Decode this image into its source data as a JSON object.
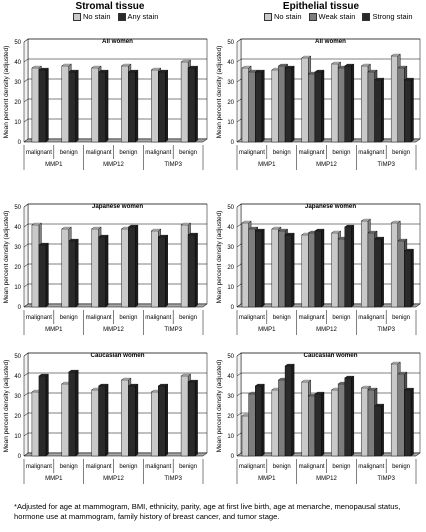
{
  "titles": {
    "left": "Stromal tissue",
    "right": "Epithelial tissue"
  },
  "legends": {
    "left": [
      {
        "label": "No stain",
        "color": "#c9c9c9"
      },
      {
        "label": "Any stain",
        "color": "#2a2a2a"
      }
    ],
    "right": [
      {
        "label": "No stain",
        "color": "#c9c9c9"
      },
      {
        "label": "Weak stain",
        "color": "#7d7d7d"
      },
      {
        "label": "Strong stain",
        "color": "#2a2a2a"
      }
    ]
  },
  "footnote": "*Adjusted for age at mammogram, BMI, ethnicity, parity, age at first live birth, age at menarche, menopausal status, hormone use at mammogram, family history of breast cancer, and tumor stage.",
  "chart_data": [
    {
      "type": "bar",
      "title": "All women",
      "ylabel": "Mean percent density (adjusted)",
      "ylim": [
        0,
        50
      ],
      "categories": [
        "malignant",
        "benign",
        "malignant",
        "benign",
        "malignant",
        "benign"
      ],
      "groups": [
        "MMP1",
        "MMP12",
        "TIMP3"
      ],
      "series": [
        {
          "name": "No stain",
          "values": [
            37,
            38,
            37,
            38,
            36,
            40
          ]
        },
        {
          "name": "Any stain",
          "values": [
            36,
            35,
            35,
            35,
            35,
            37
          ]
        }
      ]
    },
    {
      "type": "bar",
      "title": "All women",
      "ylabel": "Mean percent density (adjusted)",
      "ylim": [
        0,
        50
      ],
      "categories": [
        "malignant",
        "benign",
        "malignant",
        "benign",
        "malignant",
        "benign"
      ],
      "groups": [
        "MMP1",
        "MMP12",
        "TIMP3"
      ],
      "series": [
        {
          "name": "No stain",
          "values": [
            37,
            36,
            42,
            39,
            38,
            43
          ]
        },
        {
          "name": "Weak stain",
          "values": [
            35,
            38,
            34,
            37,
            35,
            37
          ]
        },
        {
          "name": "Strong stain",
          "values": [
            35,
            37,
            35,
            38,
            31,
            31
          ]
        }
      ]
    },
    {
      "type": "bar",
      "title": "Japanese women",
      "ylabel": "Mean percent density (adjusted)",
      "ylim": [
        0,
        50
      ],
      "categories": [
        "malignant",
        "benign",
        "malignant",
        "benign",
        "malignant",
        "benign"
      ],
      "groups": [
        "MMP1",
        "MMP12",
        "TIMP3"
      ],
      "series": [
        {
          "name": "No stain",
          "values": [
            41,
            39,
            39,
            39,
            38,
            41
          ]
        },
        {
          "name": "Any stain",
          "values": [
            31,
            33,
            35,
            40,
            35,
            36
          ]
        }
      ]
    },
    {
      "type": "bar",
      "title": "Japanese women",
      "ylabel": "Mean percent density (adjusted)",
      "ylim": [
        0,
        50
      ],
      "categories": [
        "malignant",
        "benign",
        "malignant",
        "benign",
        "malignant",
        "benign"
      ],
      "groups": [
        "MMP1",
        "MMP12",
        "TIMP3"
      ],
      "series": [
        {
          "name": "No stain",
          "values": [
            42,
            39,
            36,
            37,
            43,
            42
          ]
        },
        {
          "name": "Weak stain",
          "values": [
            39,
            38,
            37,
            34,
            37,
            33
          ]
        },
        {
          "name": "Strong stain",
          "values": [
            38,
            36,
            38,
            40,
            34,
            28
          ]
        }
      ]
    },
    {
      "type": "bar",
      "title": "Caucasian women",
      "ylabel": "Mean percent density (adjusted)",
      "ylim": [
        0,
        50
      ],
      "categories": [
        "malignant",
        "benign",
        "malignant",
        "benign",
        "malignant",
        "benign"
      ],
      "groups": [
        "MMP1",
        "MMP12",
        "TIMP3"
      ],
      "series": [
        {
          "name": "No stain",
          "values": [
            32,
            36,
            33,
            38,
            32,
            40
          ]
        },
        {
          "name": "Any stain",
          "values": [
            40,
            42,
            35,
            35,
            35,
            37
          ]
        }
      ]
    },
    {
      "type": "bar",
      "title": "Caucasian women",
      "ylabel": "Mean percent density (adjusted)",
      "ylim": [
        0,
        50
      ],
      "categories": [
        "malignant",
        "benign",
        "malignant",
        "benign",
        "malignant",
        "benign"
      ],
      "groups": [
        "MMP1",
        "MMP12",
        "TIMP3"
      ],
      "series": [
        {
          "name": "No stain",
          "values": [
            20,
            33,
            37,
            33,
            34,
            46
          ]
        },
        {
          "name": "Weak stain",
          "values": [
            31,
            38,
            30,
            36,
            33,
            41
          ]
        },
        {
          "name": "Strong stain",
          "values": [
            35,
            45,
            31,
            39,
            25,
            33
          ]
        }
      ]
    }
  ]
}
